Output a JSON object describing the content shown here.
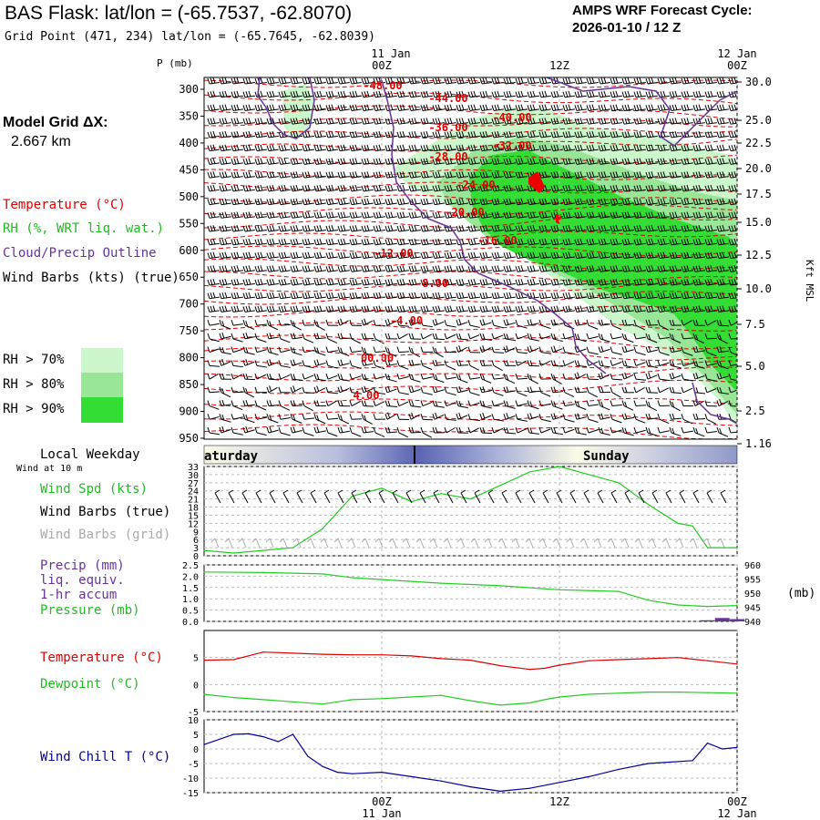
{
  "header": {
    "title": "BAS Flask:  lat/lon = (-65.7537, -62.8070)",
    "subtitle": "Grid Point (471, 234) lat/lon = (-65.7645, -62.8039)",
    "cycle_line1": "AMPS WRF Forecast Cycle:",
    "cycle_line2": "2026-01-10 / 12  Z"
  },
  "sidebar": {
    "model_grid_label": "Model Grid ΔX:",
    "model_grid_value": "2.667 km",
    "legend_temperature": "Temperature (°C)",
    "legend_rh": "RH (%, WRT liq. wat.)",
    "legend_cloud": "Cloud/Precip Outline",
    "legend_wind": "Wind Barbs (kts) (true)",
    "rh70": "RH > 70%",
    "rh80": "RH > 80%",
    "rh90": "RH > 90%",
    "local_weekday": "Local Weekday",
    "wind_at_10m": "Wind at 10 m",
    "wind_spd": "Wind Spd (kts)",
    "wind_barbs_true": "Wind Barbs (true)",
    "wind_barbs_grid": "Wind Barbs (grid)",
    "precip_l1": "Precip (mm)",
    "precip_l2": "liq. equiv.",
    "precip_l3": "1-hr accum",
    "pressure": "Pressure (mb)",
    "temperature": "Temperature (°C)",
    "dewpoint": "Dewpoint (°C)",
    "wind_chill": "Wind Chill T (°C)"
  },
  "colors": {
    "temp": "#dd0000",
    "rh": "#22cc22",
    "cloud": "#663399",
    "rh70": "#ccf7cc",
    "rh80": "#99e699",
    "rh90": "#33dd33",
    "wind_chill": "#000099",
    "grid_barb": "#aaaaaa"
  },
  "time_axis": {
    "top_labels": [
      {
        "date": "11 Jan",
        "time": "00Z"
      },
      {
        "date": "",
        "time": "12Z"
      },
      {
        "date": "12 Jan",
        "time": "00Z"
      }
    ],
    "bottom_labels": [
      {
        "time": "00Z",
        "date": "11 Jan"
      },
      {
        "time": "12Z",
        "date": ""
      },
      {
        "time": "00Z",
        "date": "12 Jan"
      }
    ],
    "days": [
      "aturday",
      "Sunday"
    ]
  },
  "chart_data": {
    "type": "line",
    "time_range_hours": [
      0,
      36
    ],
    "time_ticks_hours": [
      12,
      24,
      36
    ],
    "cross_section": {
      "pressure_axis_label": "P (mb)",
      "pressure_levels": [
        300,
        350,
        400,
        450,
        500,
        550,
        600,
        650,
        700,
        750,
        800,
        850,
        900,
        950
      ],
      "height_axis_label": "Kft MSL",
      "height_ticks": [
        30.0,
        25.0,
        22.5,
        20.0,
        17.5,
        15.0,
        12.5,
        10.0,
        7.5,
        5.0,
        2.5,
        1.16
      ],
      "isotherm_labels": [
        "-48.00",
        "-44.00",
        "-40.00",
        "-36.00",
        "-32.00",
        "-28.00",
        "-24.00",
        "-20.00",
        "-16.00",
        "-12.00",
        "-8.00",
        "-4.00",
        "00.00",
        "4.00"
      ]
    },
    "surface_wind": {
      "ylim": [
        0,
        33
      ],
      "yticks": [
        0,
        3,
        6,
        9,
        12,
        15,
        18,
        21,
        24,
        27,
        30,
        33
      ],
      "t": [
        0,
        2,
        4,
        6,
        8,
        10,
        12,
        14,
        16,
        18,
        20,
        22,
        24,
        26,
        28,
        30,
        32,
        33,
        34,
        36
      ],
      "speed_kts": [
        2,
        1,
        2,
        3,
        10,
        22,
        25,
        20,
        23,
        21,
        26,
        31,
        33,
        30,
        27,
        19,
        12,
        11,
        3,
        3
      ]
    },
    "pressure_precip": {
      "precip_ylim": [
        0.0,
        2.5
      ],
      "precip_ticks": [
        0.0,
        0.5,
        1.0,
        1.5,
        2.0,
        2.5
      ],
      "pressure_ylim": [
        940,
        960
      ],
      "pressure_ticks": [
        940,
        945,
        950,
        955,
        960
      ],
      "pressure_unit": "(mb)",
      "t": [
        0,
        4,
        8,
        10,
        12,
        16,
        20,
        24,
        28,
        30,
        32,
        34,
        36
      ],
      "pressure_mb": [
        957.5,
        957.3,
        956.8,
        955.5,
        954.8,
        953.5,
        952.6,
        951.2,
        950.6,
        947.5,
        945.8,
        945.3,
        945.6
      ],
      "precip_t": [
        34,
        35,
        36
      ],
      "precip_mm": [
        0.05,
        0.15,
        0.1
      ]
    },
    "temp_dew": {
      "ylim": [
        -5,
        10
      ],
      "yticks": [
        -5,
        0,
        5
      ],
      "t": [
        0,
        2,
        4,
        6,
        8,
        10,
        12,
        14,
        16,
        18,
        20,
        22,
        23,
        24,
        26,
        28,
        30,
        32,
        34,
        36
      ],
      "temperature_c": [
        4.5,
        4.6,
        6.0,
        5.8,
        5.6,
        5.5,
        5.5,
        5.3,
        4.8,
        4.5,
        3.5,
        2.8,
        3.0,
        3.6,
        4.4,
        4.6,
        4.8,
        5.0,
        4.4,
        3.8
      ],
      "dewpoint_c": [
        -1.8,
        -2.4,
        -2.8,
        -3.2,
        -3.6,
        -2.8,
        -2.6,
        -2.3,
        -2.0,
        -3.0,
        -3.8,
        -3.4,
        -2.8,
        -2.3,
        -1.8,
        -1.6,
        -1.4,
        -1.4,
        -1.5,
        -1.6
      ]
    },
    "wind_chill": {
      "ylim": [
        -15,
        10
      ],
      "yticks": [
        -15,
        -10,
        -5,
        0,
        5,
        10
      ],
      "t": [
        0,
        2,
        3,
        4,
        5,
        6,
        7,
        8,
        9,
        10,
        12,
        14,
        16,
        18,
        20,
        22,
        24,
        26,
        28,
        30,
        33,
        34,
        35,
        36
      ],
      "wind_chill_c": [
        1.5,
        5.0,
        5.2,
        4.2,
        2.5,
        5.0,
        -2.5,
        -6.0,
        -8.0,
        -8.5,
        -8.0,
        -9.5,
        -11.0,
        -13.0,
        -14.5,
        -13.5,
        -11.5,
        -9.5,
        -7.0,
        -5.0,
        -4.0,
        2.0,
        0.0,
        0.5
      ]
    }
  }
}
